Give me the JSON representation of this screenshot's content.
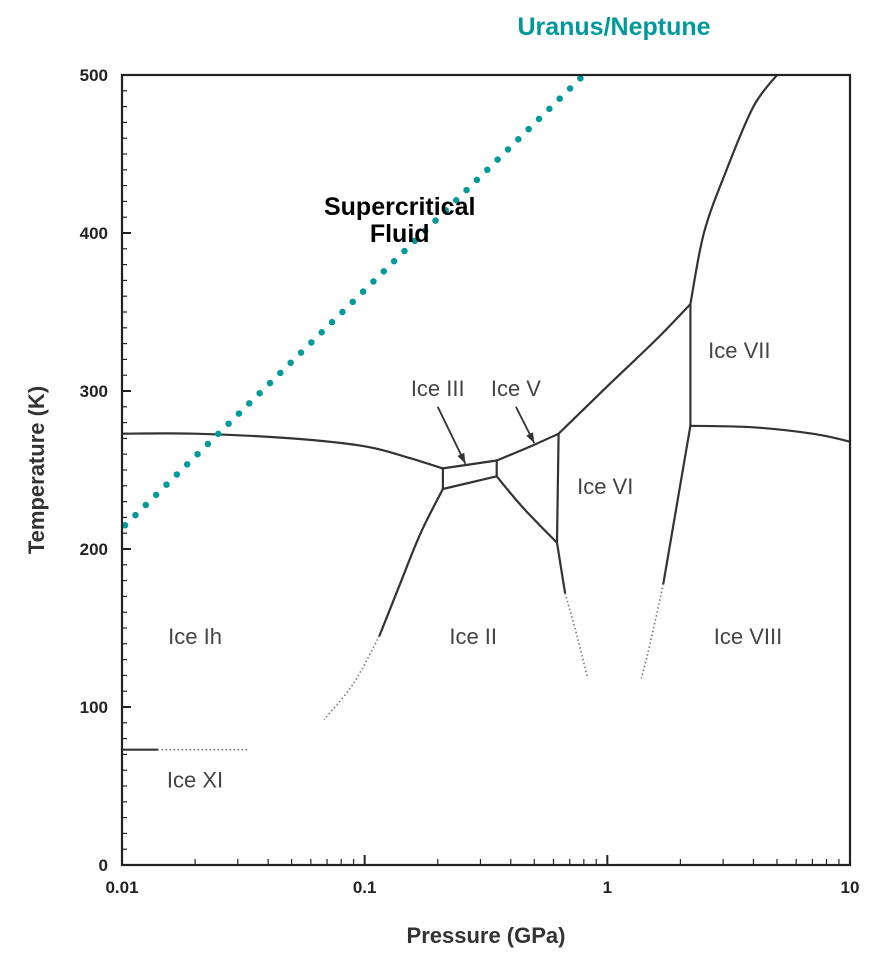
{
  "chart_data": {
    "type": "line",
    "title": "",
    "xlabel": "Pressure (GPa)",
    "ylabel": "Temperature (K)",
    "xscale": "log",
    "xlim": [
      0.01,
      10
    ],
    "ylim": [
      0,
      500
    ],
    "grid": false,
    "x_ticks": [
      {
        "value": 0.01,
        "label": "0.01"
      },
      {
        "value": 0.1,
        "label": "0.1"
      },
      {
        "value": 1,
        "label": "1"
      },
      {
        "value": 10,
        "label": "10"
      }
    ],
    "y_ticks": [
      {
        "value": 0,
        "label": "0"
      },
      {
        "value": 100,
        "label": "100"
      },
      {
        "value": 200,
        "label": "200"
      },
      {
        "value": 300,
        "label": "300"
      },
      {
        "value": 400,
        "label": "400"
      },
      {
        "value": 500,
        "label": "500"
      }
    ],
    "regions": [
      {
        "name": "Ice Ih",
        "x": 0.02,
        "y": 145
      },
      {
        "name": "Ice II",
        "x": 0.28,
        "y": 145
      },
      {
        "name": "Ice III",
        "x": 0.2,
        "y": 302
      },
      {
        "name": "Ice V",
        "x": 0.42,
        "y": 302
      },
      {
        "name": "Ice VI",
        "x": 0.98,
        "y": 240
      },
      {
        "name": "Ice VII",
        "x": 3.5,
        "y": 326
      },
      {
        "name": "Ice VIII",
        "x": 3.8,
        "y": 145
      },
      {
        "name": "Ice XI",
        "x": 0.02,
        "y": 54
      }
    ],
    "phase_boundaries": [
      {
        "name": "Ih-liquid",
        "style": "solid",
        "points": [
          [
            0.01,
            273
          ],
          [
            0.02,
            273
          ],
          [
            0.05,
            270
          ],
          [
            0.1,
            265
          ],
          [
            0.15,
            258
          ],
          [
            0.21,
            251
          ]
        ]
      },
      {
        "name": "III-liquid",
        "style": "solid",
        "points": [
          [
            0.21,
            251
          ],
          [
            0.35,
            256
          ]
        ]
      },
      {
        "name": "III-II",
        "style": "solid",
        "points": [
          [
            0.21,
            238
          ],
          [
            0.35,
            246
          ]
        ]
      },
      {
        "name": "III-Ih",
        "style": "solid",
        "points": [
          [
            0.21,
            251
          ],
          [
            0.21,
            238
          ]
        ]
      },
      {
        "name": "III-V",
        "style": "solid",
        "points": [
          [
            0.35,
            256
          ],
          [
            0.35,
            246
          ]
        ]
      },
      {
        "name": "V-liquid",
        "style": "solid",
        "points": [
          [
            0.35,
            256
          ],
          [
            0.5,
            266
          ],
          [
            0.63,
            273
          ]
        ]
      },
      {
        "name": "V-II",
        "style": "solid",
        "points": [
          [
            0.35,
            246
          ],
          [
            0.45,
            226
          ],
          [
            0.62,
            204
          ]
        ]
      },
      {
        "name": "V-VI",
        "style": "solid",
        "points": [
          [
            0.63,
            273
          ],
          [
            0.62,
            204
          ]
        ]
      },
      {
        "name": "VI-liquid",
        "style": "solid",
        "points": [
          [
            0.63,
            273
          ],
          [
            1,
            303
          ],
          [
            1.6,
            333
          ],
          [
            2.2,
            355
          ]
        ]
      },
      {
        "name": "VII-liquid",
        "style": "solid",
        "points": [
          [
            2.2,
            355
          ],
          [
            2.5,
            400
          ],
          [
            3.1,
            440
          ],
          [
            4,
            480
          ],
          [
            5,
            500
          ]
        ]
      },
      {
        "name": "VI-VII",
        "style": "solid",
        "points": [
          [
            2.2,
            355
          ],
          [
            2.2,
            278
          ]
        ]
      },
      {
        "name": "VII-VIII",
        "style": "solid",
        "points": [
          [
            2.2,
            278
          ],
          [
            4,
            277
          ],
          [
            7,
            273
          ],
          [
            10,
            268
          ]
        ]
      },
      {
        "name": "Ih-II",
        "style": "solid",
        "points": [
          [
            0.21,
            238
          ],
          [
            0.17,
            210
          ],
          [
            0.14,
            178
          ],
          [
            0.115,
            145
          ]
        ]
      },
      {
        "name": "Ih-II-metastable",
        "style": "dotted",
        "points": [
          [
            0.115,
            145
          ],
          [
            0.09,
            115
          ],
          [
            0.068,
            92
          ]
        ]
      },
      {
        "name": "II-VI",
        "style": "solid",
        "points": [
          [
            0.62,
            204
          ],
          [
            0.67,
            172
          ]
        ]
      },
      {
        "name": "II-VI-metastable",
        "style": "dotted",
        "points": [
          [
            0.67,
            172
          ],
          [
            0.75,
            145
          ],
          [
            0.83,
            118
          ]
        ]
      },
      {
        "name": "VI-VIII",
        "style": "solid",
        "points": [
          [
            2.2,
            278
          ],
          [
            1.7,
            178
          ]
        ]
      },
      {
        "name": "VI-VIII-metastable",
        "style": "dotted",
        "points": [
          [
            1.7,
            178
          ],
          [
            1.5,
            140
          ],
          [
            1.38,
            118
          ]
        ]
      },
      {
        "name": "Ih-XI",
        "style": "solid",
        "points": [
          [
            0.01,
            73
          ],
          [
            0.014,
            73
          ]
        ]
      },
      {
        "name": "Ih-XI-metastable",
        "style": "dotted",
        "points": [
          [
            0.014,
            73
          ],
          [
            0.033,
            73
          ]
        ]
      }
    ],
    "arrows": [
      {
        "target": "Ice III",
        "from": [
          0.2,
          290
        ],
        "to": [
          0.26,
          254
        ]
      },
      {
        "target": "Ice V",
        "from": [
          0.42,
          290
        ],
        "to": [
          0.5,
          267
        ]
      }
    ],
    "trajectory": {
      "name": "Uranus/Neptune",
      "color": "#00999a",
      "style": "dotted",
      "points": [
        [
          0.0103,
          215
        ],
        [
          0.8,
          500
        ]
      ]
    },
    "overlay_labels": [
      {
        "lines": [
          "Supercritical",
          "Fluid"
        ],
        "x": 0.11,
        "y": 410
      }
    ]
  }
}
